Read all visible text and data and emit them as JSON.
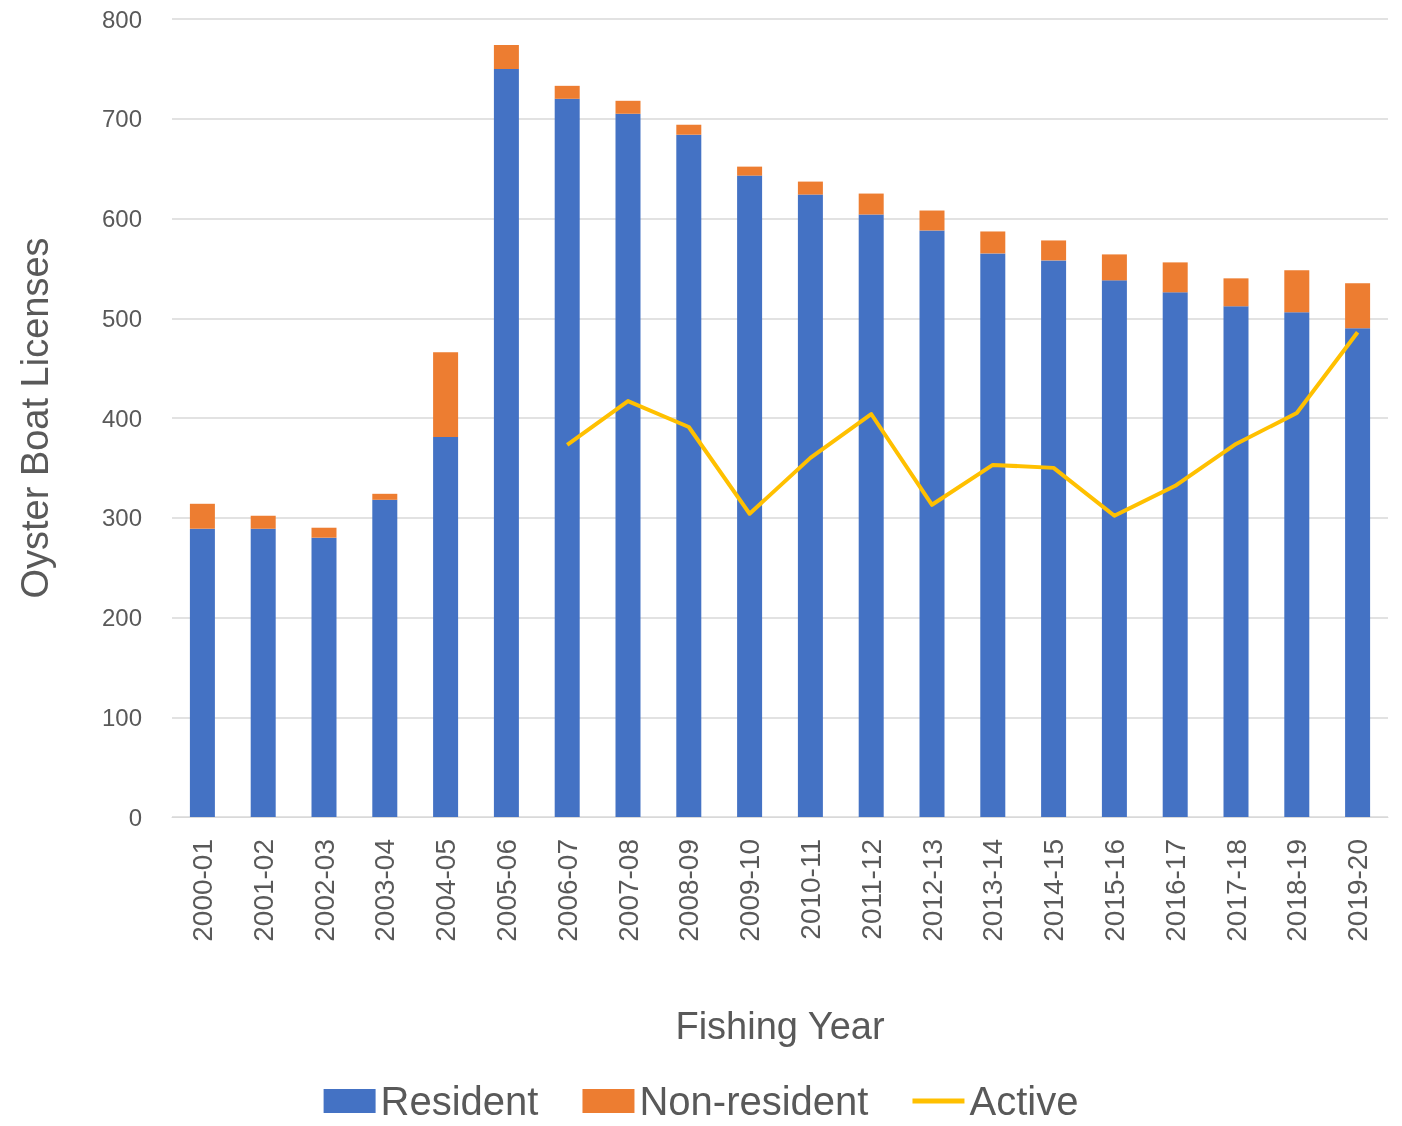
{
  "chart_data": {
    "type": "bar",
    "stacked": true,
    "xlabel": "Fishing Year",
    "ylabel": "Oyster Boat Licenses",
    "categories": [
      "2000-01",
      "2001-02",
      "2002-03",
      "2003-04",
      "2004-05",
      "2005-06",
      "2006-07",
      "2007-08",
      "2008-09",
      "2009-10",
      "2010-11",
      "2011-12",
      "2012-13",
      "2013-14",
      "2014-15",
      "2015-16",
      "2016-17",
      "2017-18",
      "2018-19",
      "2019-20"
    ],
    "series": [
      {
        "name": "Resident",
        "color": "#4472c4",
        "values": [
          289,
          289,
          280,
          318,
          381,
          750,
          720,
          705,
          684,
          643,
          624,
          604,
          588,
          565,
          558,
          538,
          526,
          512,
          506,
          490
        ]
      },
      {
        "name": "Non-resident",
        "color": "#ed7d31",
        "values": [
          25,
          13,
          10,
          6,
          85,
          24,
          13,
          13,
          10,
          9,
          13,
          21,
          20,
          22,
          20,
          26,
          30,
          28,
          42,
          45
        ]
      },
      {
        "name": "Active",
        "type": "line",
        "color": "#ffc000",
        "values": [
          null,
          null,
          null,
          null,
          null,
          null,
          373,
          417,
          391,
          304,
          360,
          404,
          313,
          353,
          350,
          302,
          332,
          374,
          405,
          486
        ]
      }
    ],
    "ylim": [
      0,
      800
    ],
    "yticks": [
      0,
      100,
      200,
      300,
      400,
      500,
      600,
      700,
      800
    ],
    "grid": "y",
    "legend": "bottom",
    "marker": "none"
  }
}
